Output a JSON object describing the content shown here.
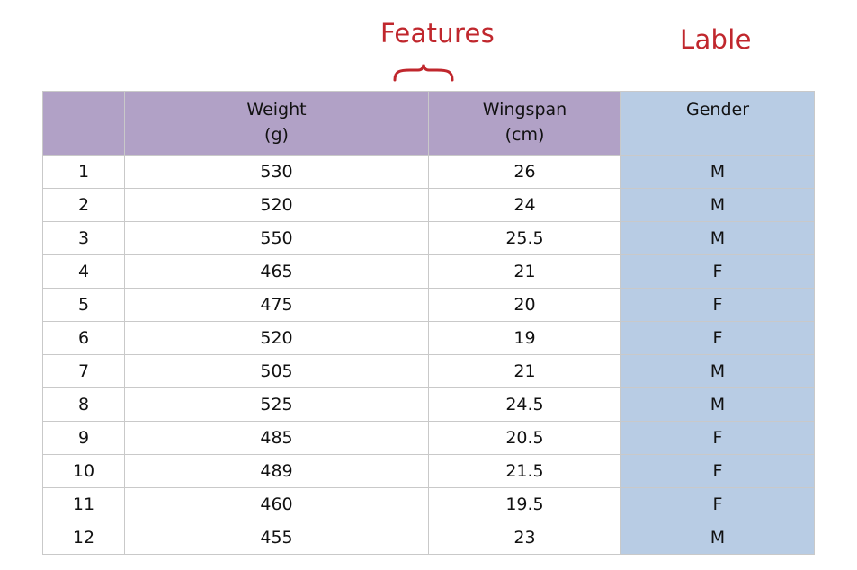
{
  "annotations": {
    "features": "Features",
    "label": "Lable"
  },
  "colors": {
    "annotation": "#c0272d",
    "feature_header": "#b1a1c6",
    "label_column": "#b8cce4"
  },
  "table": {
    "headers": [
      {
        "line1": "",
        "line2": ""
      },
      {
        "line1": "Weight",
        "line2": "(g)"
      },
      {
        "line1": "Wingspan",
        "line2": "(cm)"
      },
      {
        "line1": "Gender",
        "line2": ""
      }
    ],
    "rows": [
      [
        "1",
        "530",
        "26",
        "M"
      ],
      [
        "2",
        "520",
        "24",
        "M"
      ],
      [
        "3",
        "550",
        "25.5",
        "M"
      ],
      [
        "4",
        "465",
        "21",
        "F"
      ],
      [
        "5",
        "475",
        "20",
        "F"
      ],
      [
        "6",
        "520",
        "19",
        "F"
      ],
      [
        "7",
        "505",
        "21",
        "M"
      ],
      [
        "8",
        "525",
        "24.5",
        "M"
      ],
      [
        "9",
        "485",
        "20.5",
        "F"
      ],
      [
        "10",
        "489",
        "21.5",
        "F"
      ],
      [
        "11",
        "460",
        "19.5",
        "F"
      ],
      [
        "12",
        "455",
        "23",
        "M"
      ]
    ]
  }
}
